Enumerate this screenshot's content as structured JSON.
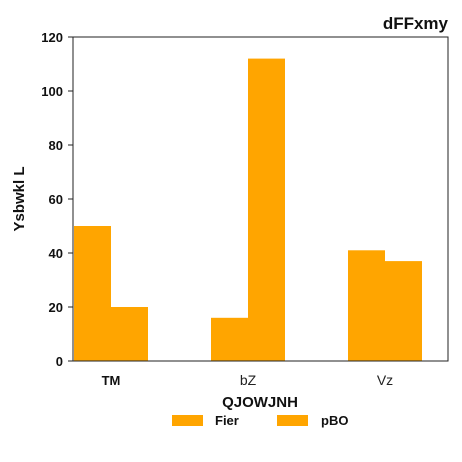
{
  "chart_data": {
    "type": "bar",
    "title": "dFFxmy",
    "xlabel": "QJOWJNH",
    "ylabel": "Ysbwkl L",
    "categories": [
      "TM",
      "bZ",
      "Vz"
    ],
    "series": [
      {
        "name": "Fier",
        "color": "#ffa500",
        "values": [
          50,
          16,
          41
        ]
      },
      {
        "name": "pBO",
        "color": "#ffa500",
        "values": [
          20,
          112,
          37
        ]
      }
    ],
    "ylim": [
      0,
      120
    ],
    "yticks": [
      0,
      20,
      40,
      60,
      80,
      100,
      120
    ],
    "grid": false,
    "legend_position": "bottom-center"
  }
}
